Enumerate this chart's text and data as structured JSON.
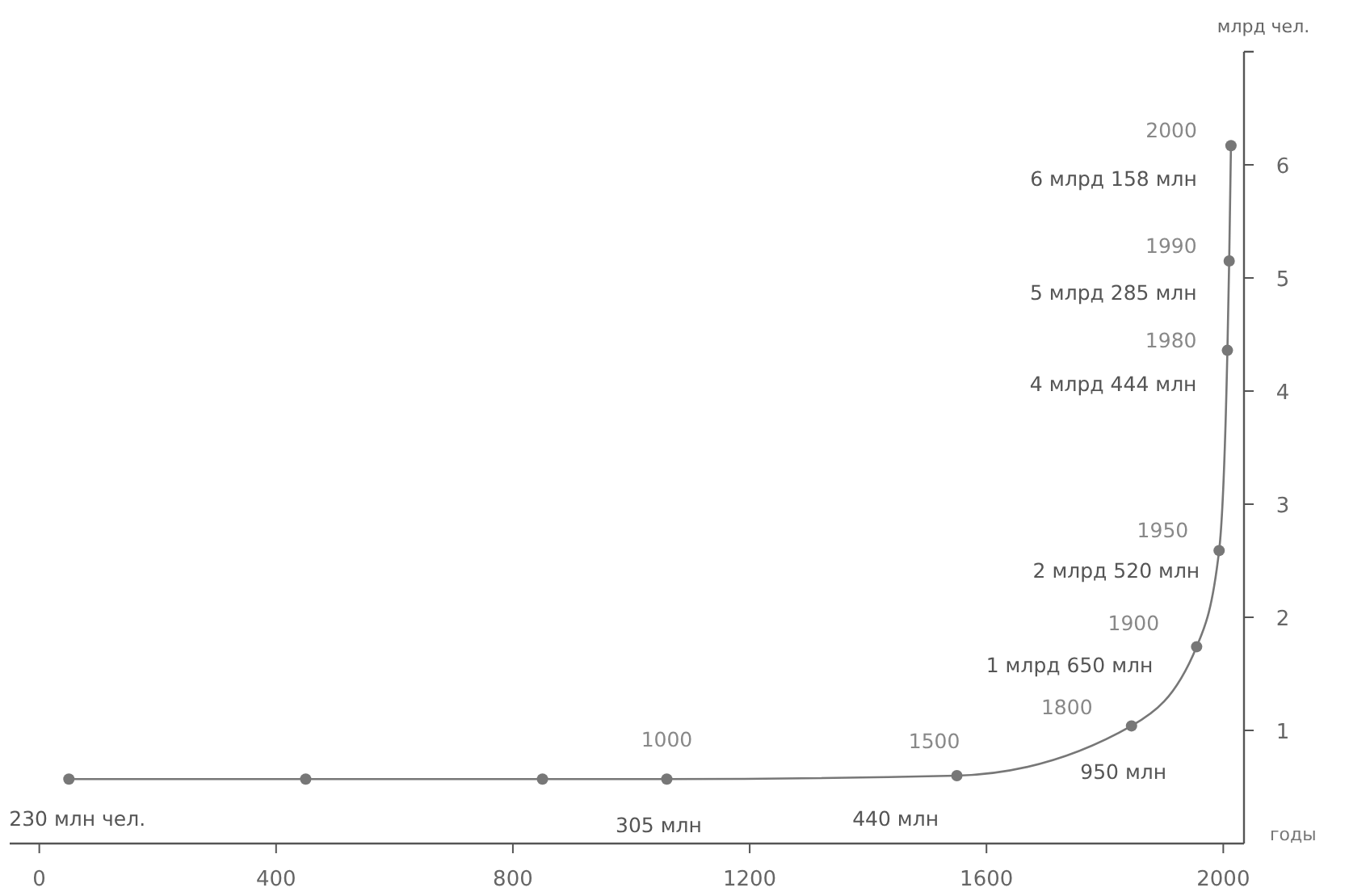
{
  "chart_data": {
    "type": "line",
    "xlabel": "годы",
    "ylabel": "млрд чел.",
    "xlim": [
      -50,
      2035
    ],
    "ylim": [
      0,
      7
    ],
    "xticks": [
      0,
      400,
      800,
      1200,
      1600,
      2000
    ],
    "yticks": [
      1,
      2,
      3,
      4,
      5,
      6
    ],
    "grid": false,
    "marker": "circle",
    "line_style": "solid",
    "series": [
      {
        "color": "#777777",
        "x": [
          50,
          450,
          850,
          1060,
          1550,
          1845,
          1955,
          1993,
          2007,
          2010,
          2013
        ],
        "values": [
          0.57,
          0.57,
          0.57,
          0.57,
          0.6,
          1.04,
          1.74,
          2.59,
          4.36,
          5.15,
          6.17
        ]
      }
    ],
    "annotations": [
      {
        "text": "230 млн чел.",
        "x": 50,
        "y": 0.57
      },
      {
        "text": "1000",
        "x": 1060,
        "y": 0.57
      },
      {
        "text": "305 млн",
        "x": 1060,
        "y": 0.57
      },
      {
        "text": "1500",
        "x": 1550,
        "y": 0.6
      },
      {
        "text": "440 млн",
        "x": 1550,
        "y": 0.6
      },
      {
        "text": "1800",
        "x": 1845,
        "y": 1.04
      },
      {
        "text": "950 млн",
        "x": 1845,
        "y": 1.04
      },
      {
        "text": "1900",
        "x": 1955,
        "y": 1.74
      },
      {
        "text": "1 млрд 650 млн",
        "x": 1955,
        "y": 1.74
      },
      {
        "text": "1950",
        "x": 1993,
        "y": 2.59
      },
      {
        "text": "2 млрд 520 млн",
        "x": 1993,
        "y": 2.59
      },
      {
        "text": "1980",
        "x": 2007,
        "y": 4.36
      },
      {
        "text": "4 млрд 444 млн",
        "x": 2007,
        "y": 4.36
      },
      {
        "text": "1990",
        "x": 2010,
        "y": 5.15
      },
      {
        "text": "5 млрд 285 млн",
        "x": 2010,
        "y": 5.15
      },
      {
        "text": "2000",
        "x": 2013,
        "y": 6.17
      },
      {
        "text": "6 млрд 158 млн",
        "x": 2013,
        "y": 6.17
      }
    ]
  }
}
